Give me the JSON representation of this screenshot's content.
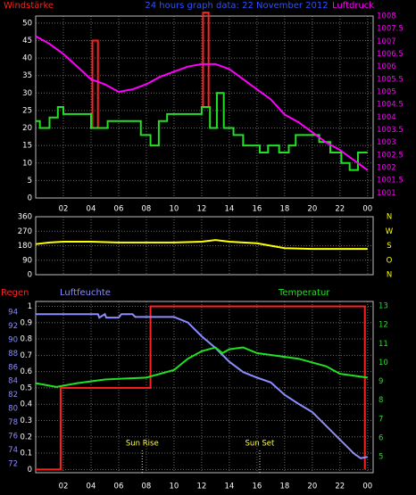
{
  "chart_data": [
    {
      "type": "line",
      "title": "24 hours graph data: 22 November 2012",
      "ylabel": "Windstärke",
      "y2label": "Luftdruck",
      "xlim": [
        0,
        24.4
      ],
      "xticks": [
        {
          "value": 2,
          "label": "02"
        },
        {
          "value": 4,
          "label": "04"
        },
        {
          "value": 6,
          "label": "06"
        },
        {
          "value": 8,
          "label": "08"
        },
        10,
        12,
        14,
        16,
        18,
        20,
        22,
        {
          "value": 24,
          "label": "00"
        }
      ],
      "ylim": [
        0,
        52
      ],
      "yticks": [
        0,
        5,
        10,
        15,
        20,
        25,
        30,
        35,
        40,
        45,
        50
      ],
      "y2lim": [
        1000.8,
        1008
      ],
      "y2ticks": [
        1001,
        1001.5,
        1002,
        1002.5,
        1003,
        1003.5,
        1004,
        1004.5,
        1005,
        1005.5,
        1006,
        1006.5,
        1007,
        1007.5,
        1008
      ],
      "grid": true,
      "series": [
        {
          "color": "#ff2020",
          "axis": "y",
          "x": [
            4.1,
            4.1,
            4.5,
            4.5,
            8,
            12.1,
            12.1,
            12.5,
            12.5
          ],
          "values": [
            20,
            45,
            45,
            20,
            null,
            26,
            53,
            53,
            26
          ]
        },
        {
          "color": "#22e022",
          "axis": "y",
          "x": [
            0,
            0.3,
            0.3,
            1.0,
            1.0,
            1.6,
            1.6,
            2.0,
            2.0,
            4.0,
            4.0,
            5.2,
            5.2,
            7.6,
            7.6,
            8.3,
            8.3,
            8.9,
            8.9,
            9.5,
            9.5,
            12.0,
            12.0,
            12.6,
            12.6,
            13.1,
            13.1,
            13.6,
            13.6,
            14.3,
            14.3,
            15.0,
            15.0,
            16.2,
            16.2,
            16.8,
            16.8,
            17.6,
            17.6,
            18.3,
            18.3,
            18.8,
            18.8,
            20.5,
            20.5,
            21.3,
            21.3,
            22.1,
            22.1,
            22.7,
            22.7,
            23.3,
            23.3,
            24
          ],
          "values": [
            22,
            22,
            20,
            20,
            23,
            23,
            26,
            26,
            24,
            24,
            20,
            20,
            22,
            22,
            18,
            18,
            15,
            15,
            22,
            22,
            24,
            24,
            26,
            26,
            20,
            20,
            30,
            30,
            20,
            20,
            18,
            18,
            15,
            15,
            13,
            13,
            15,
            15,
            13,
            13,
            15,
            15,
            18,
            18,
            16,
            16,
            13,
            13,
            10,
            10,
            8,
            8,
            13,
            13
          ]
        },
        {
          "color": "#ff00ff",
          "axis": "y2",
          "x": [
            0,
            1,
            2,
            3,
            4,
            5,
            6,
            7,
            8,
            9,
            10,
            11,
            12,
            13,
            14,
            15,
            16,
            17,
            18,
            19,
            20,
            21,
            22,
            23,
            24
          ],
          "values": [
            1007.2,
            1006.9,
            1006.5,
            1006.0,
            1005.5,
            1005.3,
            1005.0,
            1005.1,
            1005.3,
            1005.6,
            1005.8,
            1006.0,
            1006.1,
            1006.1,
            1005.9,
            1005.5,
            1005.1,
            1004.7,
            1004.1,
            1003.8,
            1003.4,
            1003.0,
            1002.7,
            1002.3,
            1001.9
          ]
        }
      ]
    },
    {
      "type": "line",
      "xlim": [
        0,
        24.4
      ],
      "xticks": [
        2,
        4,
        6,
        8,
        10,
        12,
        14,
        16,
        18,
        20,
        22,
        24
      ],
      "ylim": [
        0,
        360
      ],
      "yticks": [
        0,
        90,
        180,
        270,
        360
      ],
      "y2lim": [
        0,
        360
      ],
      "y2ticks": [
        {
          "value": 360,
          "label": "N"
        },
        {
          "value": 270,
          "label": "W"
        },
        {
          "value": 180,
          "label": "S"
        },
        {
          "value": 90,
          "label": "O"
        },
        {
          "value": 0,
          "label": "N"
        }
      ],
      "grid": true,
      "series": [
        {
          "color": "#ffff00",
          "axis": "y",
          "x": [
            0,
            1,
            2,
            4,
            6,
            8,
            10,
            12,
            13,
            14,
            16,
            17,
            18,
            20,
            22,
            24
          ],
          "values": [
            190,
            200,
            205,
            205,
            200,
            200,
            200,
            205,
            215,
            205,
            195,
            180,
            165,
            160,
            160,
            160
          ]
        }
      ]
    },
    {
      "type": "line",
      "ylabel": "Regen",
      "y3label": "Luftfeuchte",
      "y2label": "Temperatur",
      "xlim": [
        0,
        24.4
      ],
      "xticks": [
        {
          "value": 2,
          "label": "02"
        },
        {
          "value": 4,
          "label": "04"
        },
        {
          "value": 6,
          "label": "06"
        },
        {
          "value": 8,
          "label": "08"
        },
        10,
        12,
        14,
        16,
        18,
        20,
        22,
        {
          "value": 24,
          "label": "00"
        }
      ],
      "ylim": [
        -0.02,
        1.03
      ],
      "yticks": [
        0,
        0.1,
        0.2,
        0.3,
        0.4,
        0.5,
        0.6,
        0.7,
        0.8,
        0.9,
        1
      ],
      "y2lim": [
        4.15,
        13.24
      ],
      "y2ticks": [
        5,
        6,
        7,
        8,
        9,
        10,
        11,
        12,
        13
      ],
      "y3lim": [
        70.7,
        95.55
      ],
      "y3ticks": [
        72,
        74,
        76,
        78,
        80,
        82,
        84,
        86,
        88,
        90,
        92,
        94
      ],
      "grid": true,
      "annotations": [
        {
          "text": "Sun Rise",
          "x": 7.7
        },
        {
          "text": "Sun Set",
          "x": 16.2
        }
      ],
      "series": [
        {
          "color": "#ff2020",
          "axis": "y",
          "x": [
            0,
            1.8,
            1.8,
            8.3,
            8.3,
            23.8,
            23.8
          ],
          "values": [
            0,
            0,
            0.5,
            0.5,
            1,
            1,
            0
          ]
        },
        {
          "color": "#8c8cff",
          "axis": "y3",
          "x": [
            0,
            4.5,
            4.6,
            5,
            5.1,
            6,
            6.2,
            7,
            7.2,
            10,
            11,
            12,
            13,
            14,
            15,
            16,
            17,
            18,
            19,
            20,
            21,
            22,
            23,
            23.5,
            24
          ],
          "values": [
            93.7,
            93.7,
            93.2,
            93.7,
            93.2,
            93.2,
            93.7,
            93.7,
            93.3,
            93.3,
            92.5,
            90.5,
            88.8,
            86.8,
            85.3,
            84.5,
            83.8,
            82,
            80.7,
            79.5,
            77.5,
            75.5,
            73.5,
            72.8,
            73
          ]
        },
        {
          "color": "#22e022",
          "axis": "y2",
          "x": [
            0,
            1.5,
            3,
            5,
            8,
            10,
            11,
            12,
            13,
            13.5,
            14,
            15,
            16,
            17,
            18,
            19,
            20,
            21,
            22,
            23,
            24
          ],
          "values": [
            8.9,
            8.7,
            8.9,
            9.1,
            9.2,
            9.6,
            10.2,
            10.6,
            10.8,
            10.5,
            10.7,
            10.8,
            10.5,
            10.4,
            10.3,
            10.2,
            10.0,
            9.8,
            9.4,
            9.3,
            9.2
          ]
        }
      ]
    }
  ]
}
